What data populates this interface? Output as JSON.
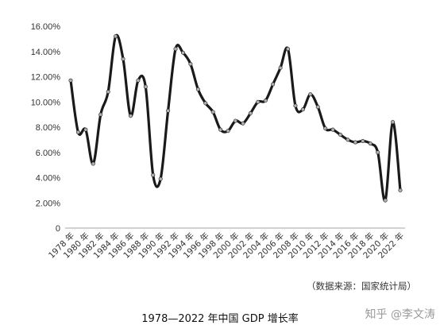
{
  "chart_data": {
    "type": "line",
    "title": "1978—2022 年中国 GDP 增长率",
    "source": "（数据来源：国家统计局）",
    "ylim": [
      0,
      16
    ],
    "yticks": [
      0,
      2,
      4,
      6,
      8,
      10,
      12,
      14,
      16
    ],
    "ytick_labels": [
      "0",
      "2.00%",
      "4.00%",
      "6.00%",
      "8.00%",
      "10.00%",
      "12.00%",
      "14.00%",
      "16.00%"
    ],
    "xtick_labels": [
      "1978 年",
      "1980 年",
      "1982 年",
      "1984 年",
      "1986 年",
      "1988 年",
      "1990 年",
      "1992 年",
      "1994 年",
      "1996 年",
      "1998 年",
      "2000 年",
      "2002 年",
      "2004 年",
      "2006 年",
      "2008 年",
      "2010 年",
      "2012 年",
      "2014 年",
      "2016 年",
      "2018 年",
      "2020 年",
      "2022 年"
    ],
    "grid": false,
    "series": [
      {
        "x": [
          1978,
          1979,
          1980,
          1981,
          1982,
          1983,
          1984,
          1985,
          1986,
          1987,
          1988,
          1989,
          1990,
          1991,
          1992,
          1993,
          1994,
          1995,
          1996,
          1997,
          1998,
          1999,
          2000,
          2001,
          2002,
          2003,
          2004,
          2005,
          2006,
          2007,
          2008,
          2009,
          2010,
          2011,
          2012,
          2013,
          2014,
          2015,
          2016,
          2017,
          2018,
          2019,
          2020,
          2021,
          2022
        ],
        "values": [
          11.7,
          7.6,
          7.8,
          5.1,
          9.0,
          10.8,
          15.2,
          13.4,
          8.9,
          11.7,
          11.2,
          4.2,
          3.9,
          9.3,
          14.2,
          13.9,
          13.0,
          11.0,
          9.9,
          9.2,
          7.8,
          7.7,
          8.5,
          8.3,
          9.1,
          10.0,
          10.1,
          11.4,
          12.7,
          14.2,
          9.7,
          9.4,
          10.6,
          9.6,
          7.9,
          7.8,
          7.4,
          7.0,
          6.8,
          6.9,
          6.7,
          6.0,
          2.2,
          8.4,
          3.0
        ]
      }
    ]
  },
  "watermark": "知乎 @李文涛"
}
